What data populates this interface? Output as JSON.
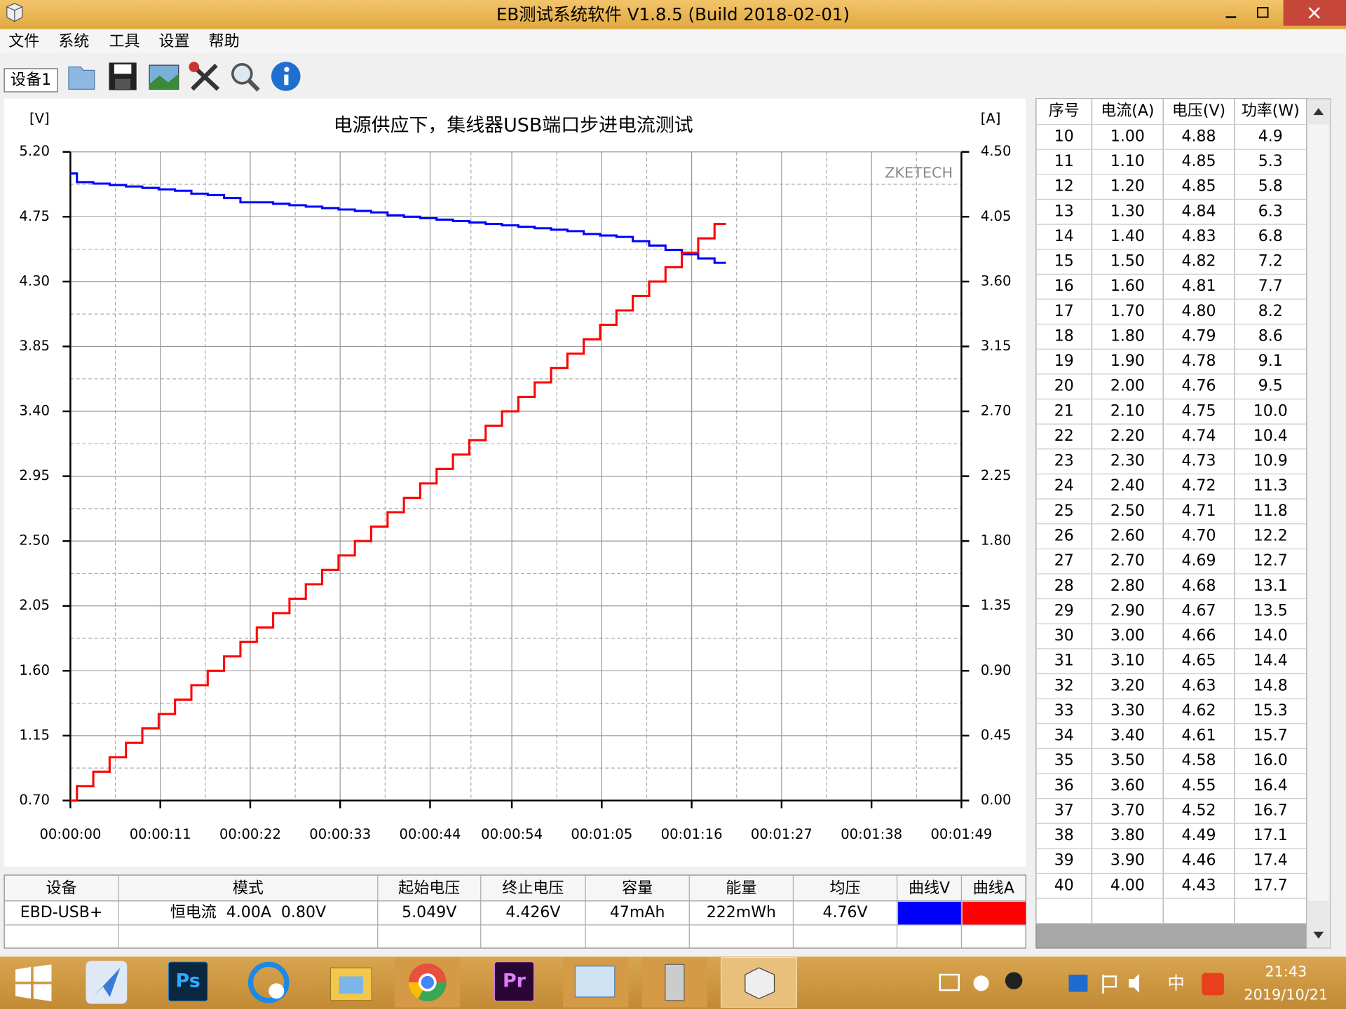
{
  "window": {
    "title": "EB测试系统软件 V1.8.5 (Build 2018-02-01)"
  },
  "menu": [
    "文件",
    "系统",
    "工具",
    "设置",
    "帮助"
  ],
  "toolbar": {
    "device_tab": "设备1"
  },
  "chart_data": {
    "type": "line",
    "title": "电源供应下，集线器USB端口步进电流测试",
    "y_label": "[V]",
    "y2_label": "[A]",
    "watermark": "ZKETECH",
    "grid": true,
    "x": [
      0,
      0.8,
      0.8,
      2.8,
      2.8,
      4.8,
      4.8,
      6.8,
      6.8,
      8.8,
      8.8,
      10.8,
      10.8,
      12.8,
      12.8,
      14.8,
      14.8,
      16.8,
      16.8,
      18.8,
      18.8,
      20.8,
      20.8,
      22.8,
      22.8,
      24.8,
      24.8,
      26.8,
      26.8,
      28.8,
      28.8,
      30.8,
      30.8,
      32.8,
      32.8,
      34.8,
      34.8,
      36.8,
      36.8,
      38.8,
      38.8,
      40.8,
      40.8,
      42.8,
      42.8,
      44.8,
      44.8,
      46.8,
      46.8,
      48.8,
      48.8,
      50.8,
      50.8,
      52.8,
      52.8,
      54.8,
      54.8,
      56.8,
      56.8,
      58.8,
      58.8,
      60.8,
      60.8,
      62.8,
      62.8,
      64.8,
      64.8,
      66.8,
      66.8,
      68.8,
      68.8,
      70.8,
      70.8,
      72.8,
      72.8,
      74.8,
      74.8,
      76.8,
      76.8,
      78.8,
      78.8,
      80.2
    ],
    "xlim": [
      0,
      109
    ],
    "xticks": [
      {
        "value": 0,
        "label": "00:00:00"
      },
      {
        "value": 11,
        "label": "00:00:11"
      },
      {
        "value": 22,
        "label": "00:00:22"
      },
      {
        "value": 33,
        "label": "00:00:33"
      },
      {
        "value": 44,
        "label": "00:00:44"
      },
      {
        "value": 54,
        "label": "00:00:54"
      },
      {
        "value": 65,
        "label": "00:01:05"
      },
      {
        "value": 76,
        "label": "00:01:16"
      },
      {
        "value": 87,
        "label": "00:01:27"
      },
      {
        "value": 98,
        "label": "00:01:38"
      },
      {
        "value": 109,
        "label": "00:01:49"
      }
    ],
    "minor_xticks": [
      5.5,
      16.5,
      27.5,
      38.5,
      49,
      59.5,
      70.5,
      81.5,
      92.5,
      103.5
    ],
    "ylim": [
      0.7,
      5.2
    ],
    "yticks": [
      {
        "value": 0.7,
        "label": "0.70"
      },
      {
        "value": 1.15,
        "label": "1.15"
      },
      {
        "value": 1.6,
        "label": "1.60"
      },
      {
        "value": 2.05,
        "label": "2.05"
      },
      {
        "value": 2.5,
        "label": "2.50"
      },
      {
        "value": 2.95,
        "label": "2.95"
      },
      {
        "value": 3.4,
        "label": "3.40"
      },
      {
        "value": 3.85,
        "label": "3.85"
      },
      {
        "value": 4.3,
        "label": "4.30"
      },
      {
        "value": 4.75,
        "label": "4.75"
      },
      {
        "value": 5.2,
        "label": "5.20"
      }
    ],
    "minor_yticks": [
      0.925,
      1.375,
      1.825,
      2.275,
      2.725,
      3.175,
      3.625,
      4.075,
      4.525,
      4.975
    ],
    "y2lim": [
      0,
      4.5
    ],
    "y2ticks": [
      {
        "value": 0,
        "label": "0.00"
      },
      {
        "value": 0.45,
        "label": "0.45"
      },
      {
        "value": 0.9,
        "label": "0.90"
      },
      {
        "value": 1.35,
        "label": "1.35"
      },
      {
        "value": 1.8,
        "label": "1.80"
      },
      {
        "value": 2.25,
        "label": "2.25"
      },
      {
        "value": 2.7,
        "label": "2.70"
      },
      {
        "value": 3.15,
        "label": "3.15"
      },
      {
        "value": 3.6,
        "label": "3.60"
      },
      {
        "value": 4.05,
        "label": "4.05"
      },
      {
        "value": 4.5,
        "label": "4.50"
      }
    ],
    "series": [
      {
        "name": "曲线V",
        "color": "#0000ff",
        "values": [
          5.05,
          5.05,
          4.99,
          4.99,
          4.98,
          4.98,
          4.97,
          4.97,
          4.96,
          4.96,
          4.95,
          4.95,
          4.94,
          4.94,
          4.93,
          4.93,
          4.91,
          4.91,
          4.9,
          4.9,
          4.88,
          4.88,
          4.85,
          4.85,
          4.85,
          4.85,
          4.84,
          4.84,
          4.83,
          4.83,
          4.82,
          4.82,
          4.81,
          4.81,
          4.8,
          4.8,
          4.79,
          4.79,
          4.78,
          4.78,
          4.76,
          4.76,
          4.75,
          4.75,
          4.74,
          4.74,
          4.73,
          4.73,
          4.72,
          4.72,
          4.71,
          4.71,
          4.7,
          4.7,
          4.69,
          4.69,
          4.68,
          4.68,
          4.67,
          4.67,
          4.66,
          4.66,
          4.65,
          4.65,
          4.63,
          4.63,
          4.62,
          4.62,
          4.61,
          4.61,
          4.58,
          4.58,
          4.55,
          4.55,
          4.52,
          4.52,
          4.49,
          4.49,
          4.46,
          4.46,
          4.43,
          4.43
        ]
      },
      {
        "name": "曲线A",
        "color": "#ff0000",
        "axis": "y2",
        "values": [
          0,
          0,
          0.1,
          0.1,
          0.2,
          0.2,
          0.3,
          0.3,
          0.4,
          0.4,
          0.5,
          0.5,
          0.6,
          0.6,
          0.7,
          0.7,
          0.8,
          0.8,
          0.9,
          0.9,
          1.0,
          1.0,
          1.1,
          1.1,
          1.2,
          1.2,
          1.3,
          1.3,
          1.4,
          1.4,
          1.5,
          1.5,
          1.6,
          1.6,
          1.7,
          1.7,
          1.8,
          1.8,
          1.9,
          1.9,
          2.0,
          2.0,
          2.1,
          2.1,
          2.2,
          2.2,
          2.3,
          2.3,
          2.4,
          2.4,
          2.5,
          2.5,
          2.6,
          2.6,
          2.7,
          2.7,
          2.8,
          2.8,
          2.9,
          2.9,
          3.0,
          3.0,
          3.1,
          3.1,
          3.2,
          3.2,
          3.3,
          3.3,
          3.4,
          3.4,
          3.5,
          3.5,
          3.6,
          3.6,
          3.7,
          3.7,
          3.8,
          3.8,
          3.9,
          3.9,
          4.0,
          4.0
        ]
      }
    ]
  },
  "readings_table": {
    "headers": [
      "序号",
      "电流(A)",
      "电压(V)",
      "功率(W)"
    ],
    "rows": [
      [
        "10",
        "1.00",
        "4.88",
        "4.9"
      ],
      [
        "11",
        "1.10",
        "4.85",
        "5.3"
      ],
      [
        "12",
        "1.20",
        "4.85",
        "5.8"
      ],
      [
        "13",
        "1.30",
        "4.84",
        "6.3"
      ],
      [
        "14",
        "1.40",
        "4.83",
        "6.8"
      ],
      [
        "15",
        "1.50",
        "4.82",
        "7.2"
      ],
      [
        "16",
        "1.60",
        "4.81",
        "7.7"
      ],
      [
        "17",
        "1.70",
        "4.80",
        "8.2"
      ],
      [
        "18",
        "1.80",
        "4.79",
        "8.6"
      ],
      [
        "19",
        "1.90",
        "4.78",
        "9.1"
      ],
      [
        "20",
        "2.00",
        "4.76",
        "9.5"
      ],
      [
        "21",
        "2.10",
        "4.75",
        "10.0"
      ],
      [
        "22",
        "2.20",
        "4.74",
        "10.4"
      ],
      [
        "23",
        "2.30",
        "4.73",
        "10.9"
      ],
      [
        "24",
        "2.40",
        "4.72",
        "11.3"
      ],
      [
        "25",
        "2.50",
        "4.71",
        "11.8"
      ],
      [
        "26",
        "2.60",
        "4.70",
        "12.2"
      ],
      [
        "27",
        "2.70",
        "4.69",
        "12.7"
      ],
      [
        "28",
        "2.80",
        "4.68",
        "13.1"
      ],
      [
        "29",
        "2.90",
        "4.67",
        "13.5"
      ],
      [
        "30",
        "3.00",
        "4.66",
        "14.0"
      ],
      [
        "31",
        "3.10",
        "4.65",
        "14.4"
      ],
      [
        "32",
        "3.20",
        "4.63",
        "14.8"
      ],
      [
        "33",
        "3.30",
        "4.62",
        "15.3"
      ],
      [
        "34",
        "3.40",
        "4.61",
        "15.7"
      ],
      [
        "35",
        "3.50",
        "4.58",
        "16.0"
      ],
      [
        "36",
        "3.60",
        "4.55",
        "16.4"
      ],
      [
        "37",
        "3.70",
        "4.52",
        "16.7"
      ],
      [
        "38",
        "3.80",
        "4.49",
        "17.1"
      ],
      [
        "39",
        "3.90",
        "4.46",
        "17.4"
      ],
      [
        "40",
        "4.00",
        "4.43",
        "17.7"
      ]
    ]
  },
  "summary_table": {
    "headers": [
      "设备",
      "模式",
      "起始电压",
      "终止电压",
      "容量",
      "能量",
      "均压",
      "曲线V",
      "曲线A"
    ],
    "rows": [
      [
        "EBD-USB+",
        "恒电流  4.00A  0.80V",
        "5.049V",
        "4.426V",
        "47mAh",
        "222mWh",
        "4.76V"
      ]
    ]
  },
  "taskbar": {
    "apps": [
      "Ps",
      "Pr"
    ],
    "ime": "中",
    "time": "21:43",
    "date": "2019/10/21"
  }
}
